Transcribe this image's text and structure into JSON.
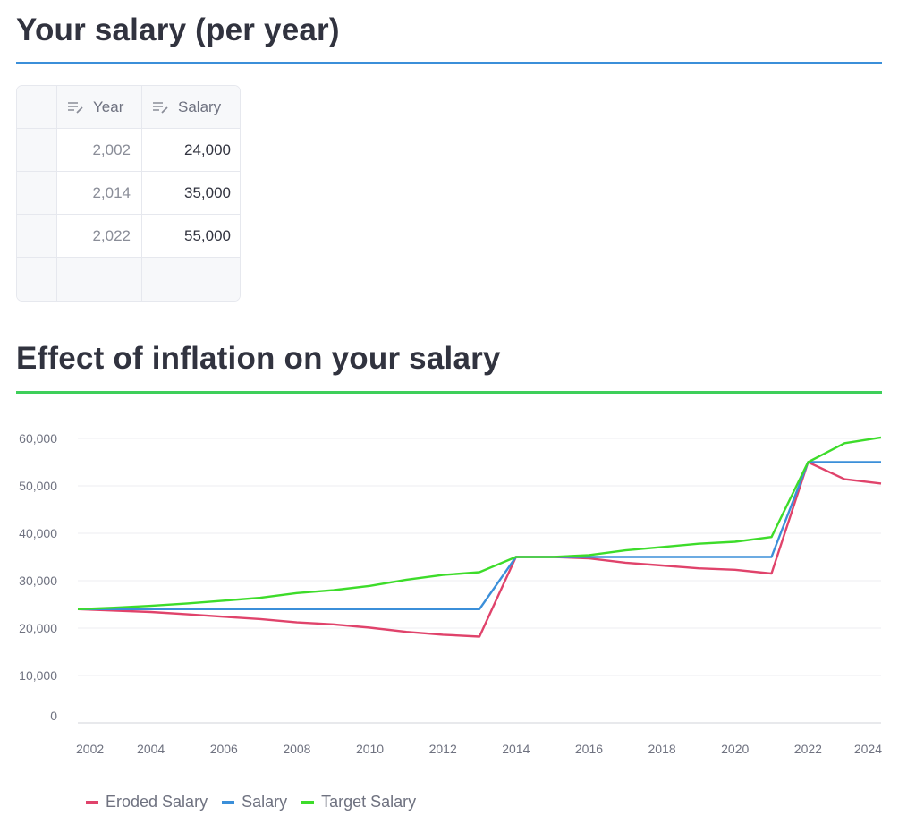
{
  "section1": {
    "title": "Your salary (per year)"
  },
  "table": {
    "columns": [
      "Year",
      "Salary"
    ],
    "rows": [
      [
        "2,002",
        "24,000"
      ],
      [
        "2,014",
        "35,000"
      ],
      [
        "2,022",
        "55,000"
      ]
    ]
  },
  "section2": {
    "title": "Effect of inflation on your salary"
  },
  "chart_data": {
    "type": "line",
    "x": [
      2002,
      2003,
      2004,
      2005,
      2006,
      2007,
      2008,
      2009,
      2010,
      2011,
      2012,
      2013,
      2014,
      2015,
      2016,
      2017,
      2018,
      2019,
      2020,
      2021,
      2022,
      2023,
      2024
    ],
    "x_ticks": [
      "2002",
      "2004",
      "2006",
      "2008",
      "2010",
      "2012",
      "2014",
      "2016",
      "2018",
      "2020",
      "2022",
      "2024"
    ],
    "y_ticks": [
      "0",
      "10,000",
      "20,000",
      "30,000",
      "40,000",
      "50,000",
      "60,000"
    ],
    "ylim": [
      0,
      60000
    ],
    "grid": true,
    "legend_position": "bottom-left",
    "series": [
      {
        "name": "Eroded Salary",
        "color": "#e0436b",
        "values": [
          24000,
          23700,
          23400,
          22900,
          22400,
          21900,
          21200,
          20800,
          20100,
          19200,
          18600,
          18200,
          35000,
          35000,
          34700,
          33800,
          33200,
          32600,
          32300,
          31500,
          55000,
          51400,
          50500
        ]
      },
      {
        "name": "Salary",
        "color": "#3b8fd9",
        "values": [
          24000,
          24000,
          24000,
          24000,
          24000,
          24000,
          24000,
          24000,
          24000,
          24000,
          24000,
          24000,
          35000,
          35000,
          35000,
          35000,
          35000,
          35000,
          35000,
          35000,
          55000,
          55000,
          55000
        ]
      },
      {
        "name": "Target Salary",
        "color": "#3ddc2a",
        "values": [
          24000,
          24300,
          24700,
          25200,
          25800,
          26400,
          27400,
          28000,
          28900,
          30200,
          31200,
          31800,
          35000,
          35000,
          35400,
          36400,
          37100,
          37800,
          38200,
          39200,
          55000,
          59000,
          60200
        ]
      }
    ]
  }
}
